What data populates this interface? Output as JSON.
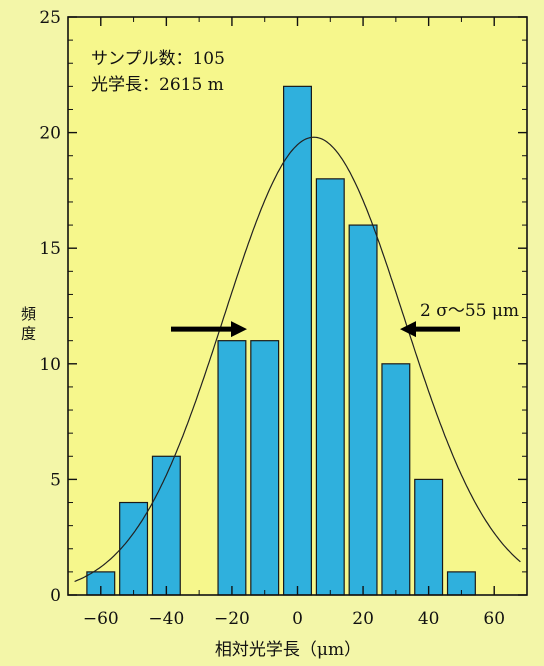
{
  "colors": {
    "background": "#f3f6a8",
    "plot_background": "#f6f78c",
    "bar_fill": "#2fb0dd",
    "bar_stroke": "#1a1a1a",
    "curve": "#222222",
    "arrow": "#000000"
  },
  "chart_data": {
    "type": "bar",
    "title": "",
    "xlabel": "相対光学長（μm）",
    "ylabel": "頻 度",
    "xlim": [
      -70,
      70
    ],
    "ylim": [
      0,
      25
    ],
    "x_ticks": [
      -60,
      -40,
      -20,
      0,
      20,
      40,
      60
    ],
    "x_tick_labels": [
      "−60",
      "−40",
      "−20",
      "0",
      "20",
      "40",
      "60"
    ],
    "y_ticks": [
      0,
      5,
      10,
      15,
      20,
      25
    ],
    "y_tick_labels": [
      "0",
      "5",
      "10",
      "15",
      "20",
      "25"
    ],
    "bin_width": 10,
    "bins": [
      {
        "center": -60,
        "count": 1
      },
      {
        "center": -50,
        "count": 4
      },
      {
        "center": -40,
        "count": 6
      },
      {
        "center": -20,
        "count": 11
      },
      {
        "center": -10,
        "count": 11
      },
      {
        "center": 0,
        "count": 22
      },
      {
        "center": 10,
        "count": 18
      },
      {
        "center": 20,
        "count": 16
      },
      {
        "center": 30,
        "count": 10
      },
      {
        "center": 40,
        "count": 5
      },
      {
        "center": 50,
        "count": 1
      }
    ],
    "fit_curve": {
      "type": "gaussian",
      "mean": 5,
      "sigma": 27.5,
      "peak": 19.8
    },
    "annotations": {
      "sample_text": "サンプル数：105",
      "length_text": "光学長：2615 m",
      "sigma_text": "2 σ〜55 μm"
    },
    "grid": false,
    "legend": "none"
  }
}
